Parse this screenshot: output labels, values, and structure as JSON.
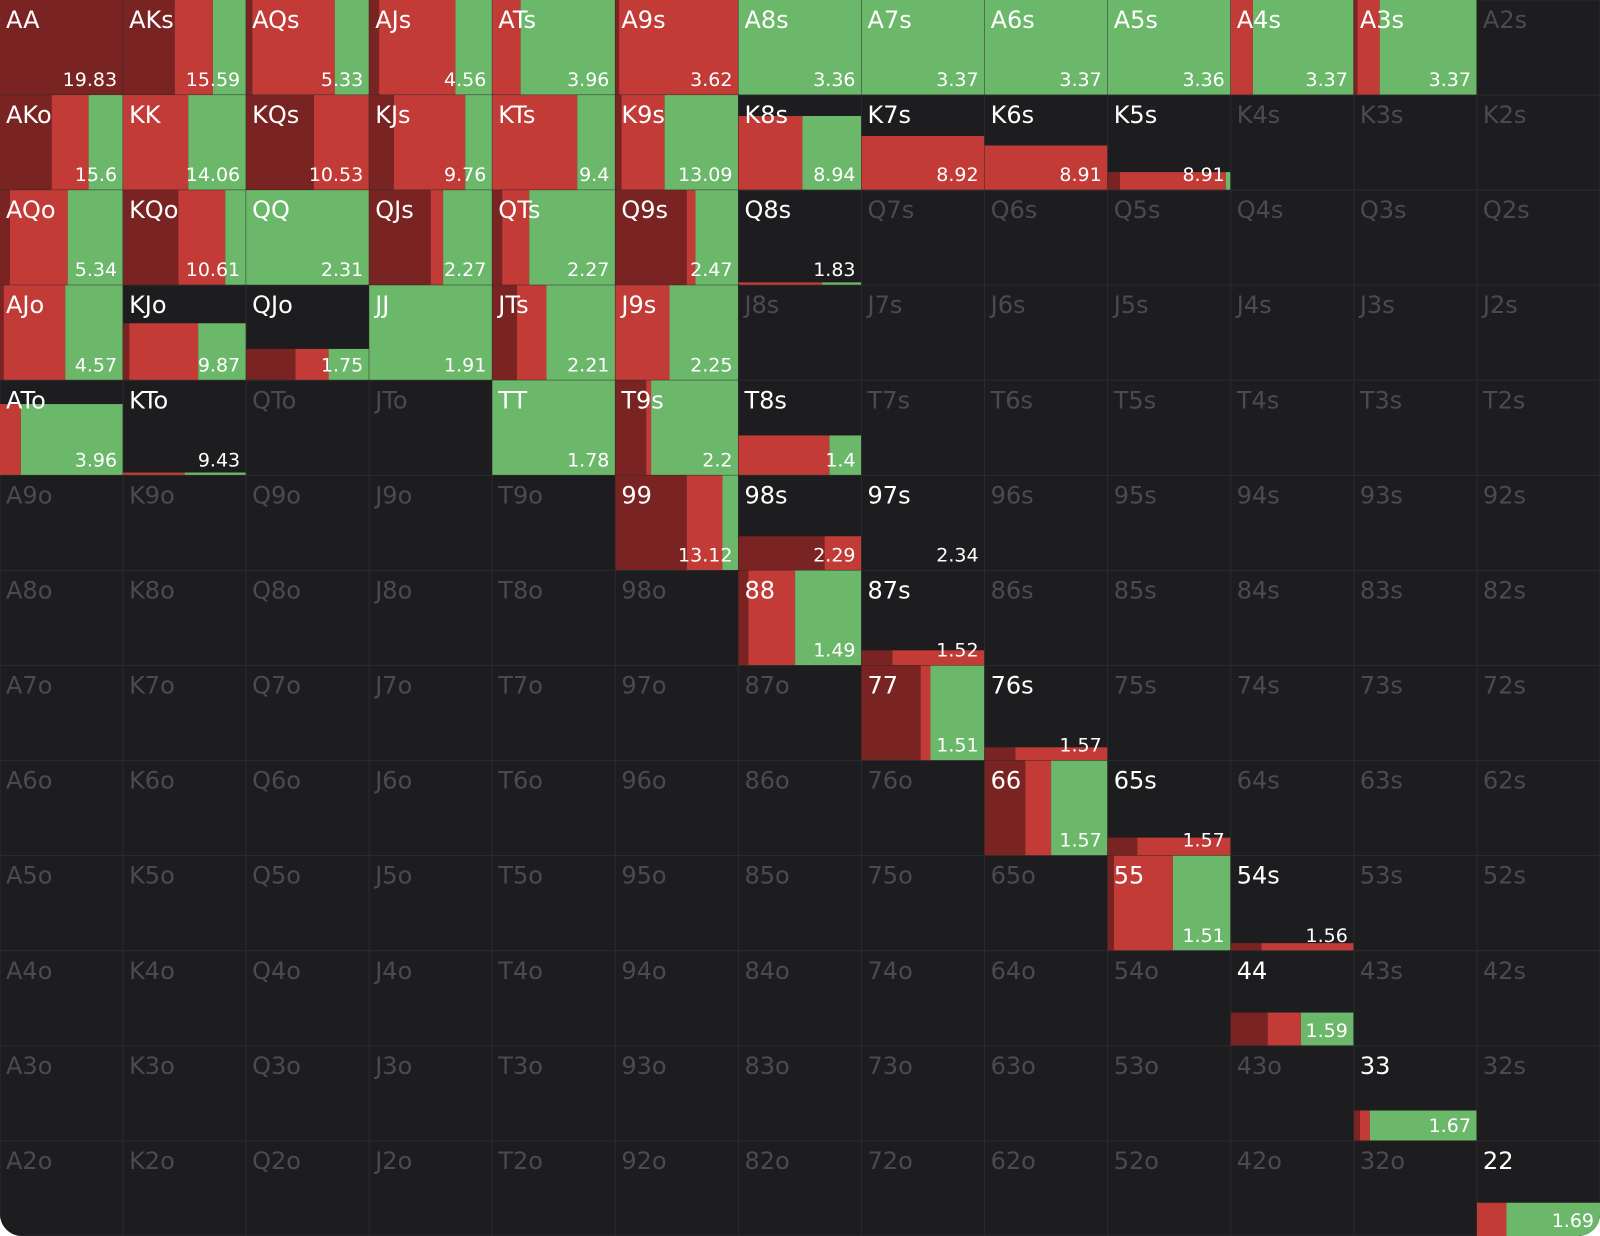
{
  "grid": {
    "colors": [
      "#7a2323",
      "#c23b37",
      "#6cb86a"
    ],
    "rows": [
      [
        {
          "label": "AA",
          "value": 19.83,
          "height": 100,
          "mix": [
            100,
            0,
            0
          ]
        },
        {
          "label": "AKs",
          "value": 15.59,
          "height": 100,
          "mix": [
            42,
            31,
            27
          ]
        },
        {
          "label": "AQs",
          "value": 5.33,
          "height": 100,
          "mix": [
            5,
            67,
            28
          ]
        },
        {
          "label": "AJs",
          "value": 4.56,
          "height": 100,
          "mix": [
            8,
            62,
            30
          ]
        },
        {
          "label": "ATs",
          "value": 3.96,
          "height": 100,
          "mix": [
            0,
            23,
            77
          ]
        },
        {
          "label": "A9s",
          "value": 3.62,
          "height": 100,
          "mix": [
            3,
            97,
            0
          ]
        },
        {
          "label": "A8s",
          "value": 3.36,
          "height": 100,
          "mix": [
            0,
            0,
            100
          ]
        },
        {
          "label": "A7s",
          "value": 3.37,
          "height": 100,
          "mix": [
            0,
            0,
            100
          ]
        },
        {
          "label": "A6s",
          "value": 3.37,
          "height": 100,
          "mix": [
            0,
            0,
            100
          ]
        },
        {
          "label": "A5s",
          "value": 3.36,
          "height": 100,
          "mix": [
            0,
            0,
            100
          ]
        },
        {
          "label": "A4s",
          "value": 3.37,
          "height": 100,
          "mix": [
            0,
            18,
            82
          ]
        },
        {
          "label": "A3s",
          "value": 3.37,
          "height": 100,
          "mix": [
            3,
            18,
            79
          ]
        },
        {
          "label": "A2s"
        }
      ],
      [
        {
          "label": "AKo",
          "value": 15.6,
          "height": 100,
          "mix": [
            42,
            30,
            28
          ]
        },
        {
          "label": "KK",
          "value": 14.06,
          "height": 100,
          "mix": [
            0,
            53,
            47
          ]
        },
        {
          "label": "KQs",
          "value": 10.53,
          "height": 100,
          "mix": [
            55,
            45,
            0
          ]
        },
        {
          "label": "KJs",
          "value": 9.76,
          "height": 100,
          "mix": [
            20,
            58,
            22
          ]
        },
        {
          "label": "KTs",
          "value": 9.4,
          "height": 100,
          "mix": [
            0,
            69,
            31
          ]
        },
        {
          "label": "K9s",
          "value": 13.09,
          "height": 100,
          "mix": [
            5,
            35,
            60
          ]
        },
        {
          "label": "K8s",
          "value": 8.94,
          "height": 78,
          "mix": [
            0,
            52,
            48
          ]
        },
        {
          "label": "K7s",
          "value": 8.92,
          "height": 57,
          "mix": [
            0,
            100,
            0
          ]
        },
        {
          "label": "K6s",
          "value": 8.91,
          "height": 47,
          "mix": [
            0,
            100,
            0
          ]
        },
        {
          "label": "K5s",
          "value": 8.91,
          "height": 19,
          "mix": [
            10,
            86,
            4
          ]
        },
        {
          "label": "K4s"
        },
        {
          "label": "K3s"
        },
        {
          "label": "K2s"
        }
      ],
      [
        {
          "label": "AQo",
          "value": 5.34,
          "height": 100,
          "mix": [
            8,
            47,
            45
          ]
        },
        {
          "label": "KQo",
          "value": 10.61,
          "height": 100,
          "mix": [
            45,
            38,
            17
          ]
        },
        {
          "label": "QQ",
          "value": 2.31,
          "height": 100,
          "mix": [
            0,
            0,
            100
          ]
        },
        {
          "label": "QJs",
          "value": 2.27,
          "height": 100,
          "mix": [
            50,
            10,
            40
          ]
        },
        {
          "label": "QTs",
          "value": 2.27,
          "height": 100,
          "mix": [
            8,
            22,
            70
          ]
        },
        {
          "label": "Q9s",
          "value": 2.47,
          "height": 100,
          "mix": [
            58,
            7,
            35
          ]
        },
        {
          "label": "Q8s",
          "value": 1.83,
          "height": 3,
          "mix": [
            0,
            68,
            32
          ]
        },
        {
          "label": "Q7s"
        },
        {
          "label": "Q6s"
        },
        {
          "label": "Q5s"
        },
        {
          "label": "Q4s"
        },
        {
          "label": "Q3s"
        },
        {
          "label": "Q2s"
        }
      ],
      [
        {
          "label": "AJo",
          "value": 4.57,
          "height": 100,
          "mix": [
            3,
            50,
            47
          ]
        },
        {
          "label": "KJo",
          "value": 9.87,
          "height": 60,
          "mix": [
            5,
            56,
            39
          ]
        },
        {
          "label": "QJo",
          "value": 1.75,
          "height": 33,
          "mix": [
            40,
            27,
            33
          ]
        },
        {
          "label": "JJ",
          "value": 1.91,
          "height": 100,
          "mix": [
            0,
            0,
            100
          ]
        },
        {
          "label": "JTs",
          "value": 2.21,
          "height": 100,
          "mix": [
            20,
            24,
            56
          ]
        },
        {
          "label": "J9s",
          "value": 2.25,
          "height": 100,
          "mix": [
            0,
            44,
            56
          ]
        },
        {
          "label": "J8s"
        },
        {
          "label": "J7s"
        },
        {
          "label": "J6s"
        },
        {
          "label": "J5s"
        },
        {
          "label": "J4s"
        },
        {
          "label": "J3s"
        },
        {
          "label": "J2s"
        }
      ],
      [
        {
          "label": "ATo",
          "value": 3.96,
          "height": 75,
          "mix": [
            0,
            17,
            83
          ]
        },
        {
          "label": "KTo",
          "value": 9.43,
          "height": 3,
          "mix": [
            0,
            50,
            50
          ]
        },
        {
          "label": "QTo"
        },
        {
          "label": "JTo"
        },
        {
          "label": "TT",
          "value": 1.78,
          "height": 100,
          "mix": [
            0,
            0,
            100
          ]
        },
        {
          "label": "T9s",
          "value": 2.2,
          "height": 100,
          "mix": [
            25,
            4,
            71
          ]
        },
        {
          "label": "T8s",
          "value": 1.4,
          "height": 42,
          "mix": [
            0,
            74,
            26
          ]
        },
        {
          "label": "T7s"
        },
        {
          "label": "T6s"
        },
        {
          "label": "T5s"
        },
        {
          "label": "T4s"
        },
        {
          "label": "T3s"
        },
        {
          "label": "T2s"
        }
      ],
      [
        {
          "label": "A9o"
        },
        {
          "label": "K9o"
        },
        {
          "label": "Q9o"
        },
        {
          "label": "J9o"
        },
        {
          "label": "T9o"
        },
        {
          "label": "99",
          "value": 13.12,
          "height": 100,
          "mix": [
            58,
            29,
            13
          ]
        },
        {
          "label": "98s",
          "value": 2.29,
          "height": 36,
          "mix": [
            70,
            30,
            0
          ]
        },
        {
          "label": "97s",
          "value": 2.34,
          "height": 0,
          "mix": [
            0,
            0,
            0
          ]
        },
        {
          "label": "96s"
        },
        {
          "label": "95s"
        },
        {
          "label": "94s"
        },
        {
          "label": "93s"
        },
        {
          "label": "92s"
        }
      ],
      [
        {
          "label": "A8o"
        },
        {
          "label": "K8o"
        },
        {
          "label": "Q8o"
        },
        {
          "label": "J8o"
        },
        {
          "label": "T8o"
        },
        {
          "label": "98o"
        },
        {
          "label": "88",
          "value": 1.49,
          "height": 100,
          "mix": [
            8,
            38,
            54
          ]
        },
        {
          "label": "87s",
          "value": 1.52,
          "height": 16,
          "mix": [
            25,
            75,
            0
          ]
        },
        {
          "label": "86s"
        },
        {
          "label": "85s"
        },
        {
          "label": "84s"
        },
        {
          "label": "83s"
        },
        {
          "label": "82s"
        }
      ],
      [
        {
          "label": "A7o"
        },
        {
          "label": "K7o"
        },
        {
          "label": "Q7o"
        },
        {
          "label": "J7o"
        },
        {
          "label": "T7o"
        },
        {
          "label": "97o"
        },
        {
          "label": "87o"
        },
        {
          "label": "77",
          "value": 1.51,
          "height": 100,
          "mix": [
            48,
            8,
            44
          ]
        },
        {
          "label": "76s",
          "value": 1.57,
          "height": 14,
          "mix": [
            25,
            75,
            0
          ]
        },
        {
          "label": "75s"
        },
        {
          "label": "74s"
        },
        {
          "label": "73s"
        },
        {
          "label": "72s"
        }
      ],
      [
        {
          "label": "A6o"
        },
        {
          "label": "K6o"
        },
        {
          "label": "Q6o"
        },
        {
          "label": "J6o"
        },
        {
          "label": "T6o"
        },
        {
          "label": "96o"
        },
        {
          "label": "86o"
        },
        {
          "label": "76o"
        },
        {
          "label": "66",
          "value": 1.57,
          "height": 100,
          "mix": [
            33,
            21,
            46
          ]
        },
        {
          "label": "65s",
          "value": 1.57,
          "height": 19,
          "mix": [
            24,
            76,
            0
          ]
        },
        {
          "label": "64s"
        },
        {
          "label": "63s"
        },
        {
          "label": "62s"
        }
      ],
      [
        {
          "label": "A5o"
        },
        {
          "label": "K5o"
        },
        {
          "label": "Q5o"
        },
        {
          "label": "J5o"
        },
        {
          "label": "T5o"
        },
        {
          "label": "95o"
        },
        {
          "label": "85o"
        },
        {
          "label": "75o"
        },
        {
          "label": "65o"
        },
        {
          "label": "55",
          "value": 1.51,
          "height": 100,
          "mix": [
            5,
            48,
            47
          ]
        },
        {
          "label": "54s",
          "value": 1.56,
          "height": 8,
          "mix": [
            25,
            75,
            0
          ]
        },
        {
          "label": "53s"
        },
        {
          "label": "52s"
        }
      ],
      [
        {
          "label": "A4o"
        },
        {
          "label": "K4o"
        },
        {
          "label": "Q4o"
        },
        {
          "label": "J4o"
        },
        {
          "label": "T4o"
        },
        {
          "label": "94o"
        },
        {
          "label": "84o"
        },
        {
          "label": "74o"
        },
        {
          "label": "64o"
        },
        {
          "label": "54o"
        },
        {
          "label": "44",
          "value": 1.59,
          "height": 35,
          "mix": [
            30,
            27,
            43
          ]
        },
        {
          "label": "43s"
        },
        {
          "label": "42s"
        }
      ],
      [
        {
          "label": "A3o"
        },
        {
          "label": "K3o"
        },
        {
          "label": "Q3o"
        },
        {
          "label": "J3o"
        },
        {
          "label": "T3o"
        },
        {
          "label": "93o"
        },
        {
          "label": "83o"
        },
        {
          "label": "73o"
        },
        {
          "label": "63o"
        },
        {
          "label": "53o"
        },
        {
          "label": "43o"
        },
        {
          "label": "33",
          "value": 1.67,
          "height": 32,
          "mix": [
            5,
            8,
            87
          ]
        },
        {
          "label": "32s"
        }
      ],
      [
        {
          "label": "A2o"
        },
        {
          "label": "K2o"
        },
        {
          "label": "Q2o"
        },
        {
          "label": "J2o"
        },
        {
          "label": "T2o"
        },
        {
          "label": "92o"
        },
        {
          "label": "82o"
        },
        {
          "label": "72o"
        },
        {
          "label": "62o"
        },
        {
          "label": "52o"
        },
        {
          "label": "42o"
        },
        {
          "label": "32o"
        },
        {
          "label": "22",
          "value": 1.69,
          "height": 35,
          "mix": [
            0,
            24,
            76
          ]
        }
      ]
    ]
  }
}
